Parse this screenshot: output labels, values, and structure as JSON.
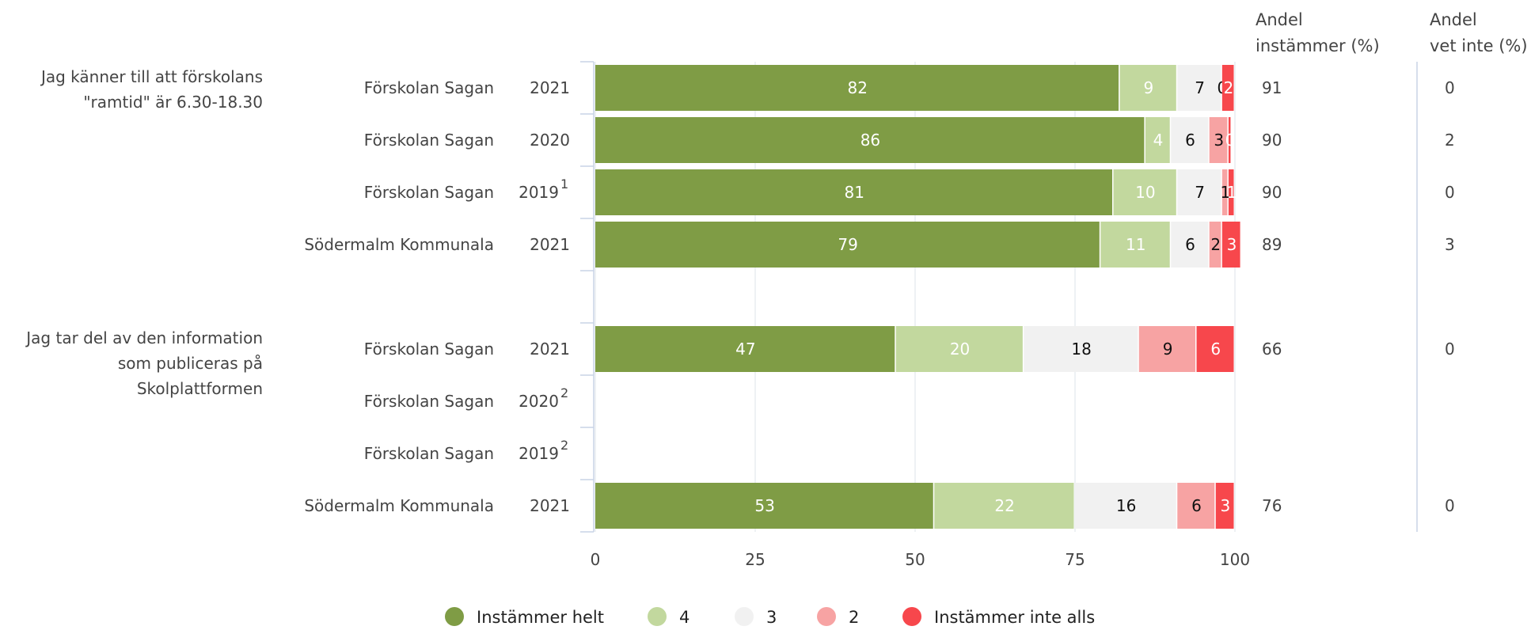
{
  "chart_data": {
    "type": "bar",
    "orientation": "horizontal",
    "stacked": true,
    "xlim": [
      0,
      100
    ],
    "x_ticks": [
      "0",
      "25",
      "50",
      "75",
      "100"
    ],
    "grid": true,
    "legend_position": "bottom-center",
    "column_headers": {
      "agree": [
        "Andel",
        "instämmer (%)"
      ],
      "dont_know": [
        "Andel",
        "vet inte (%)"
      ]
    },
    "series": [
      {
        "name": "Instämmer helt",
        "color": "#7f9c45"
      },
      {
        "name": "4",
        "color": "#c2d89e"
      },
      {
        "name": "3",
        "color": "#f1f1f1"
      },
      {
        "name": "2",
        "color": "#f7a3a3"
      },
      {
        "name": "Instämmer inte alls",
        "color": "#f7474c"
      }
    ],
    "groups": [
      {
        "question": [
          "Jag känner till att förskolans",
          "\"ramtid\" är 6.30-18.30"
        ],
        "rows": [
          {
            "unit": "Förskolan Sagan",
            "year": "2021",
            "sup": "",
            "values": [
              82,
              9,
              7,
              0,
              2
            ],
            "labels": [
              "82",
              "9",
              "7",
              "0",
              "2"
            ],
            "agree": "91",
            "dont_know": "0"
          },
          {
            "unit": "Förskolan Sagan",
            "year": "2020",
            "sup": "",
            "values": [
              86,
              4,
              6,
              3,
              0.5
            ],
            "labels": [
              "86",
              "4",
              "6",
              "3",
              "0"
            ],
            "agree": "90",
            "dont_know": "2"
          },
          {
            "unit": "Förskolan Sagan",
            "year": "2019",
            "sup": "1",
            "values": [
              81,
              10,
              7,
              1,
              1
            ],
            "labels": [
              "81",
              "10",
              "7",
              "1",
              "1"
            ],
            "agree": "90",
            "dont_know": "0"
          },
          {
            "unit": "Södermalm Kommunala",
            "year": "2021",
            "sup": "",
            "values": [
              79,
              11,
              6,
              2,
              3
            ],
            "labels": [
              "79",
              "11",
              "6",
              "2",
              "3"
            ],
            "agree": "89",
            "dont_know": "3"
          }
        ]
      },
      {
        "question": [
          "Jag tar del av den information",
          "som publiceras på",
          "Skolplattformen"
        ],
        "rows": [
          {
            "unit": "Förskolan Sagan",
            "year": "2021",
            "sup": "",
            "values": [
              47,
              20,
              18,
              9,
              6
            ],
            "labels": [
              "47",
              "20",
              "18",
              "9",
              "6"
            ],
            "agree": "66",
            "dont_know": "0"
          },
          {
            "unit": "Förskolan Sagan",
            "year": "2020",
            "sup": "2",
            "values": [],
            "labels": [],
            "agree": "",
            "dont_know": ""
          },
          {
            "unit": "Förskolan Sagan",
            "year": "2019",
            "sup": "2",
            "values": [],
            "labels": [],
            "agree": "",
            "dont_know": ""
          },
          {
            "unit": "Södermalm Kommunala",
            "year": "2021",
            "sup": "",
            "values": [
              53,
              22,
              16,
              6,
              3
            ],
            "labels": [
              "53",
              "22",
              "16",
              "6",
              "3"
            ],
            "agree": "76",
            "dont_know": "0"
          }
        ]
      }
    ]
  }
}
